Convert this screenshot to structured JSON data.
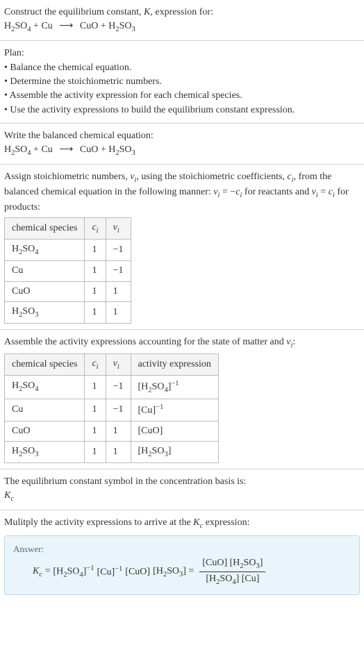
{
  "header": {
    "line1_a": "Construct the equilibrium constant, ",
    "line1_b": ", expression for:",
    "eq_lhs_1": "H",
    "eq_lhs_1s": "2",
    "eq_lhs_2": "SO",
    "eq_lhs_2s": "4",
    "plus": " + ",
    "cu": "Cu",
    "arrow": "⟶",
    "cuo": "CuO",
    "eq_rhs_1": "H",
    "eq_rhs_1s": "2",
    "eq_rhs_2": "SO",
    "eq_rhs_2s": "3"
  },
  "plan": {
    "title": "Plan:",
    "b1": "• Balance the chemical equation.",
    "b2": "• Determine the stoichiometric numbers.",
    "b3": "• Assemble the activity expression for each chemical species.",
    "b4": "• Use the activity expressions to build the equilibrium constant expression."
  },
  "balanced": {
    "title": "Write the balanced chemical equation:"
  },
  "stoich": {
    "intro_a": "Assign stoichiometric numbers, ",
    "intro_b": ", using the stoichiometric coefficients, ",
    "intro_c": ", from the balanced chemical equation in the following manner: ",
    "intro_d": " for reactants and ",
    "intro_e": " for products:",
    "nu": "ν",
    "nui": "i",
    "ci": "c",
    "eqminus": " = −",
    "eqplus": " = ",
    "h_species": "chemical species",
    "h_ci": "c",
    "h_ci_sub": "i",
    "h_nu": "ν",
    "h_nu_sub": "i",
    "r1_s_a": "H",
    "r1_s_as": "2",
    "r1_s_b": "SO",
    "r1_s_bs": "4",
    "r1_c": "1",
    "r1_n": "−1",
    "r2_s": "Cu",
    "r2_c": "1",
    "r2_n": "−1",
    "r3_s": "CuO",
    "r3_c": "1",
    "r3_n": "1",
    "r4_s_a": "H",
    "r4_s_as": "2",
    "r4_s_b": "SO",
    "r4_s_bs": "3",
    "r4_c": "1",
    "r4_n": "1"
  },
  "activity": {
    "title_a": "Assemble the activity expressions accounting for the state of matter and ",
    "title_b": ":",
    "h_act": "activity expression",
    "e1_a": "[H",
    "e1_as": "2",
    "e1_b": "SO",
    "e1_bs": "4",
    "e1_c": "]",
    "e1_exp": "−1",
    "e2_a": "[Cu]",
    "e2_exp": "−1",
    "e3": "[CuO]",
    "e4_a": "[H",
    "e4_as": "2",
    "e4_b": "SO",
    "e4_bs": "3",
    "e4_c": "]"
  },
  "symbol": {
    "line": "The equilibrium constant symbol in the concentration basis is:",
    "K": "K",
    "c": "c"
  },
  "multiply": {
    "line_a": "Mulitply the activity expressions to arrive at the ",
    "line_b": " expression:"
  },
  "answer": {
    "label": "Answer:",
    "K": "K",
    "c": "c",
    "eq": " = ",
    "t1_a": "[H",
    "t1_as": "2",
    "t1_b": "SO",
    "t1_bs": "4",
    "t1_c": "]",
    "t1_exp": "−1",
    "t2_a": " [Cu]",
    "t2_exp": "−1",
    "t3": " [CuO] ",
    "t4_a": "[H",
    "t4_as": "2",
    "t4_b": "SO",
    "t4_bs": "3",
    "t4_c": "] = ",
    "num_a": "[CuO] [H",
    "num_as": "2",
    "num_b": "SO",
    "num_bs": "3",
    "num_c": "]",
    "den_a": "[H",
    "den_as": "2",
    "den_b": "SO",
    "den_bs": "4",
    "den_c": "] [Cu]"
  }
}
